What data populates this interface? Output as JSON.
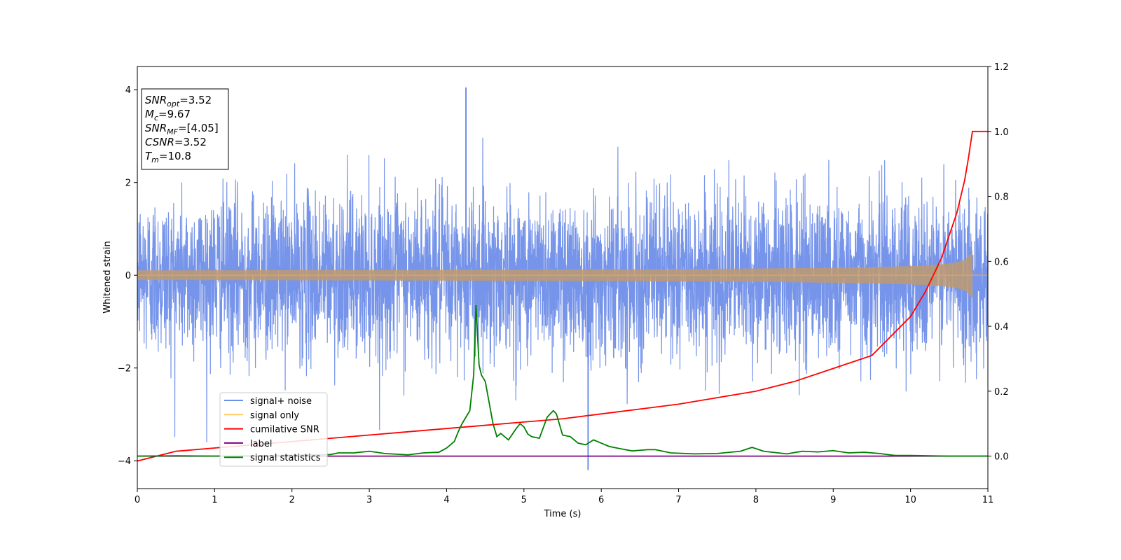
{
  "chart_data": {
    "type": "line",
    "title": "",
    "xlabel": "Time (s)",
    "ylabel": "Whitened strain",
    "xlim": [
      0,
      11
    ],
    "ylim": [
      -4.6,
      4.5
    ],
    "y2lim": [
      -0.1,
      1.2
    ],
    "x_ticks": [
      0,
      1,
      2,
      3,
      4,
      5,
      6,
      7,
      8,
      9,
      10,
      11
    ],
    "y_ticks": [
      -4,
      -2,
      0,
      2,
      4
    ],
    "y2_ticks": [
      "0.0",
      "0.2",
      "0.4",
      "0.6",
      "0.8",
      "1.0",
      "1.2"
    ],
    "grid": false,
    "legend_position": "lower-left",
    "series": [
      {
        "name": "signal+ noise",
        "axis": "left",
        "color": "#6f8ee8",
        "noise_amplitude": 1.2,
        "max_value": 4.05,
        "min_value": -4.2,
        "x_range": [
          0,
          11
        ]
      },
      {
        "name": "signal only",
        "axis": "left",
        "color": "#ffcc66",
        "chirp_end": 10.8,
        "peak_amplitude": 0.5
      },
      {
        "name": "cumilative SNR",
        "axis": "right",
        "color": "#ff0000",
        "x": [
          0,
          0.5,
          1,
          1.5,
          2,
          2.5,
          3,
          3.5,
          4,
          4.5,
          5,
          5.5,
          6,
          6.5,
          7,
          7.5,
          8,
          8.5,
          9,
          9.5,
          10,
          10.2,
          10.4,
          10.5,
          10.6,
          10.7,
          10.75,
          10.8,
          11
        ],
        "y": [
          -0.015,
          0.015,
          0.025,
          0.035,
          0.045,
          0.055,
          0.065,
          0.075,
          0.085,
          0.095,
          0.105,
          0.115,
          0.13,
          0.145,
          0.16,
          0.18,
          0.2,
          0.23,
          0.27,
          0.31,
          0.43,
          0.51,
          0.61,
          0.68,
          0.75,
          0.85,
          0.92,
          1.0,
          1.0
        ]
      },
      {
        "name": "label",
        "axis": "right",
        "color": "#800080",
        "x": [
          0,
          11
        ],
        "y": [
          0,
          0
        ]
      },
      {
        "name": "signal statistics",
        "axis": "right",
        "color": "#008000",
        "x": [
          0,
          0.5,
          1,
          1.5,
          2,
          2.5,
          2.6,
          2.8,
          3,
          3.2,
          3.5,
          3.7,
          3.9,
          4.0,
          4.1,
          4.15,
          4.2,
          4.3,
          4.35,
          4.38,
          4.42,
          4.45,
          4.5,
          4.6,
          4.65,
          4.7,
          4.8,
          4.9,
          4.95,
          5.0,
          5.05,
          5.1,
          5.2,
          5.3,
          5.38,
          5.42,
          5.5,
          5.6,
          5.7,
          5.8,
          5.9,
          6.0,
          6.1,
          6.2,
          6.4,
          6.6,
          6.7,
          6.9,
          7.2,
          7.5,
          7.8,
          7.95,
          8.1,
          8.4,
          8.6,
          8.8,
          9.0,
          9.2,
          9.4,
          9.6,
          9.8,
          10,
          10.5,
          11
        ],
        "y": [
          0.0,
          0.001,
          0.0,
          0.001,
          0.003,
          0.005,
          0.01,
          0.01,
          0.015,
          0.008,
          0.004,
          0.01,
          0.012,
          0.025,
          0.045,
          0.075,
          0.1,
          0.14,
          0.25,
          0.465,
          0.28,
          0.25,
          0.23,
          0.1,
          0.06,
          0.07,
          0.05,
          0.085,
          0.1,
          0.09,
          0.068,
          0.06,
          0.055,
          0.12,
          0.14,
          0.13,
          0.065,
          0.06,
          0.04,
          0.035,
          0.05,
          0.04,
          0.03,
          0.025,
          0.016,
          0.02,
          0.02,
          0.01,
          0.007,
          0.008,
          0.015,
          0.027,
          0.015,
          0.007,
          0.015,
          0.013,
          0.017,
          0.01,
          0.012,
          0.008,
          0.002,
          0.002,
          0.0,
          0.0
        ]
      }
    ],
    "legend": [
      {
        "label": "signal+ noise",
        "color": "#6f8ee8"
      },
      {
        "label": "signal only",
        "color": "#ffcc66"
      },
      {
        "label": "cumilative SNR",
        "color": "#ff0000"
      },
      {
        "label": "label",
        "color": "#800080"
      },
      {
        "label": "signal statistics",
        "color": "#008000"
      }
    ],
    "annotation": [
      {
        "label": "SNR",
        "sub": "opt",
        "value": "=3.52"
      },
      {
        "label": "M",
        "sub": "c",
        "value": "=9.67"
      },
      {
        "label": "SNR",
        "sub": "MF",
        "value": "=[4.05]"
      },
      {
        "label": "CSNR",
        "sub": "",
        "value": "=3.52"
      },
      {
        "label": "T",
        "sub": "m",
        "value": "=10.8"
      }
    ]
  }
}
